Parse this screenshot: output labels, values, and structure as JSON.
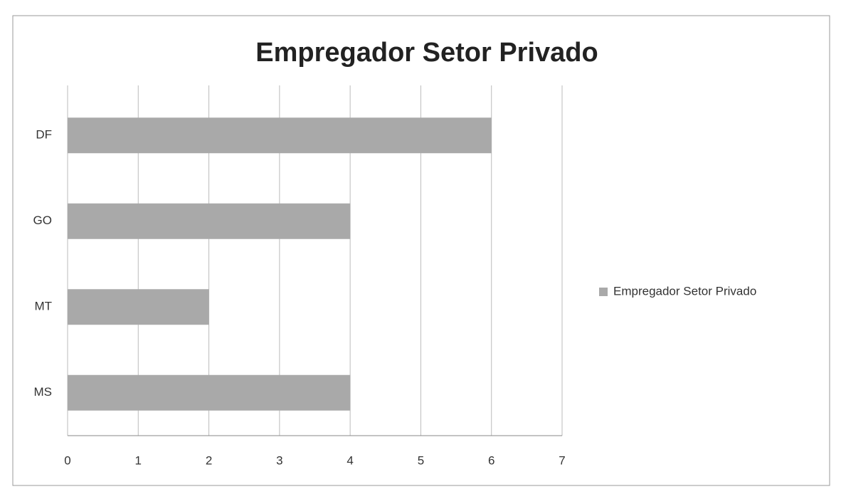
{
  "chart_data": {
    "type": "bar",
    "orientation": "horizontal",
    "title": "Empregador Setor Privado",
    "categories": [
      "DF",
      "GO",
      "MT",
      "MS"
    ],
    "series": [
      {
        "name": "Empregador Setor Privado",
        "color": "#a9a9a9",
        "values": [
          6,
          4,
          2,
          4
        ]
      }
    ],
    "xlim": [
      0,
      7
    ],
    "xticks": [
      0,
      1,
      2,
      3,
      4,
      5,
      6,
      7
    ],
    "grid": true,
    "legend": "right"
  }
}
